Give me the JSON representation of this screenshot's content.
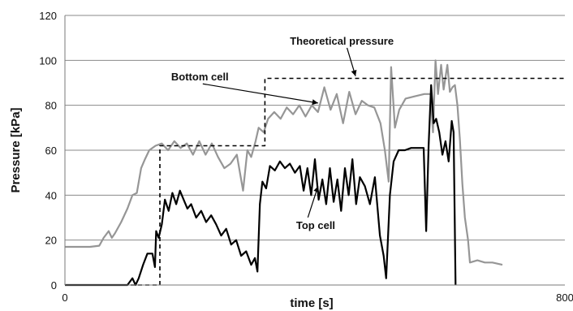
{
  "chart_data": {
    "type": "line",
    "title": "",
    "xlabel": "time [s]",
    "ylabel": "Pressure [kPa]",
    "xlim": [
      0,
      800
    ],
    "ylim": [
      0,
      120
    ],
    "xticks": [
      0,
      800
    ],
    "yticks": [
      0,
      20,
      40,
      60,
      80,
      100,
      120
    ],
    "grid": "horizontal",
    "legend": "none",
    "series": [
      {
        "key": "bottom",
        "label": "Bottom cell",
        "color": "#969696",
        "style": "solid",
        "points": [
          [
            0,
            17
          ],
          [
            20,
            17
          ],
          [
            40,
            17
          ],
          [
            55,
            17.5
          ],
          [
            62,
            21
          ],
          [
            70,
            24
          ],
          [
            75,
            21
          ],
          [
            80,
            23
          ],
          [
            90,
            28
          ],
          [
            100,
            34
          ],
          [
            108,
            40
          ],
          [
            115,
            41
          ],
          [
            122,
            52
          ],
          [
            128,
            56
          ],
          [
            135,
            60
          ],
          [
            145,
            62
          ],
          [
            155,
            63
          ],
          [
            165,
            60
          ],
          [
            175,
            64
          ],
          [
            185,
            61
          ],
          [
            195,
            63
          ],
          [
            205,
            58
          ],
          [
            215,
            64
          ],
          [
            225,
            58
          ],
          [
            235,
            63
          ],
          [
            245,
            57
          ],
          [
            255,
            52
          ],
          [
            265,
            54
          ],
          [
            275,
            58
          ],
          [
            285,
            42
          ],
          [
            292,
            60
          ],
          [
            298,
            57
          ],
          [
            305,
            64
          ],
          [
            310,
            70
          ],
          [
            318,
            68
          ],
          [
            325,
            74
          ],
          [
            335,
            77
          ],
          [
            345,
            74
          ],
          [
            355,
            79
          ],
          [
            365,
            76
          ],
          [
            375,
            80
          ],
          [
            385,
            75
          ],
          [
            395,
            80
          ],
          [
            405,
            77
          ],
          [
            415,
            88
          ],
          [
            425,
            78
          ],
          [
            435,
            85
          ],
          [
            445,
            72
          ],
          [
            455,
            86
          ],
          [
            465,
            76
          ],
          [
            475,
            82
          ],
          [
            485,
            80
          ],
          [
            495,
            79
          ],
          [
            505,
            72
          ],
          [
            512,
            60
          ],
          [
            518,
            46
          ],
          [
            522,
            97
          ],
          [
            528,
            70
          ],
          [
            535,
            78
          ],
          [
            545,
            83
          ],
          [
            560,
            84
          ],
          [
            575,
            85
          ],
          [
            585,
            85
          ],
          [
            589,
            68
          ],
          [
            593,
            100
          ],
          [
            597,
            85
          ],
          [
            602,
            98
          ],
          [
            606,
            87
          ],
          [
            612,
            98
          ],
          [
            616,
            86
          ],
          [
            620,
            88
          ],
          [
            624,
            89
          ],
          [
            628,
            80
          ],
          [
            632,
            65
          ],
          [
            636,
            45
          ],
          [
            640,
            30
          ],
          [
            645,
            20
          ],
          [
            648,
            10
          ],
          [
            660,
            11
          ],
          [
            672,
            10
          ],
          [
            684,
            10
          ],
          [
            700,
            9
          ]
        ]
      },
      {
        "key": "top",
        "label": "Top cell",
        "color": "#000000",
        "style": "solid",
        "points": [
          [
            0,
            0
          ],
          [
            100,
            0
          ],
          [
            108,
            3
          ],
          [
            113,
            0
          ],
          [
            118,
            3
          ],
          [
            125,
            9
          ],
          [
            132,
            14
          ],
          [
            140,
            14
          ],
          [
            144,
            8
          ],
          [
            146,
            24
          ],
          [
            150,
            21
          ],
          [
            155,
            27
          ],
          [
            160,
            38
          ],
          [
            166,
            33
          ],
          [
            172,
            41
          ],
          [
            178,
            36
          ],
          [
            184,
            42
          ],
          [
            190,
            38
          ],
          [
            196,
            34
          ],
          [
            202,
            36
          ],
          [
            210,
            30
          ],
          [
            218,
            33
          ],
          [
            226,
            28
          ],
          [
            234,
            31
          ],
          [
            242,
            27
          ],
          [
            250,
            22
          ],
          [
            258,
            25
          ],
          [
            266,
            18
          ],
          [
            274,
            20
          ],
          [
            282,
            13
          ],
          [
            290,
            15
          ],
          [
            298,
            9
          ],
          [
            304,
            12
          ],
          [
            308,
            6
          ],
          [
            312,
            36
          ],
          [
            316,
            46
          ],
          [
            322,
            43
          ],
          [
            328,
            53
          ],
          [
            336,
            51
          ],
          [
            344,
            55
          ],
          [
            352,
            52
          ],
          [
            360,
            54
          ],
          [
            368,
            50
          ],
          [
            376,
            53
          ],
          [
            382,
            42
          ],
          [
            388,
            52
          ],
          [
            394,
            40
          ],
          [
            400,
            56
          ],
          [
            406,
            38
          ],
          [
            412,
            47
          ],
          [
            418,
            36
          ],
          [
            424,
            52
          ],
          [
            430,
            37
          ],
          [
            436,
            47
          ],
          [
            442,
            33
          ],
          [
            448,
            52
          ],
          [
            454,
            40
          ],
          [
            460,
            56
          ],
          [
            466,
            36
          ],
          [
            472,
            48
          ],
          [
            480,
            44
          ],
          [
            488,
            36
          ],
          [
            496,
            48
          ],
          [
            504,
            22
          ],
          [
            510,
            13
          ],
          [
            514,
            3
          ],
          [
            520,
            40
          ],
          [
            526,
            55
          ],
          [
            534,
            60
          ],
          [
            544,
            60
          ],
          [
            554,
            61
          ],
          [
            564,
            61
          ],
          [
            574,
            61
          ],
          [
            578,
            24
          ],
          [
            582,
            62
          ],
          [
            586,
            89
          ],
          [
            590,
            72
          ],
          [
            594,
            74
          ],
          [
            599,
            68
          ],
          [
            604,
            58
          ],
          [
            609,
            64
          ],
          [
            614,
            55
          ],
          [
            619,
            73
          ],
          [
            622,
            68
          ],
          [
            625,
            0
          ]
        ]
      },
      {
        "key": "theory",
        "label": "Theoretical pressure",
        "color": "#000000",
        "style": "dashed",
        "points": [
          [
            0,
            0
          ],
          [
            152,
            0
          ],
          [
            152,
            62
          ],
          [
            320,
            62
          ],
          [
            320,
            92
          ],
          [
            800,
            92
          ]
        ]
      }
    ],
    "annotations": [
      {
        "key": "theory",
        "text": "Theoretical pressure",
        "x": 360,
        "y": 107,
        "arrow_to": [
          465,
          93
        ]
      },
      {
        "key": "bottom",
        "text": "Bottom cell",
        "x": 170,
        "y": 91,
        "arrow_to": [
          405,
          81
        ]
      },
      {
        "key": "top",
        "text": "Top cell",
        "x": 370,
        "y": 25,
        "arrow_to": [
          405,
          44
        ]
      }
    ]
  }
}
